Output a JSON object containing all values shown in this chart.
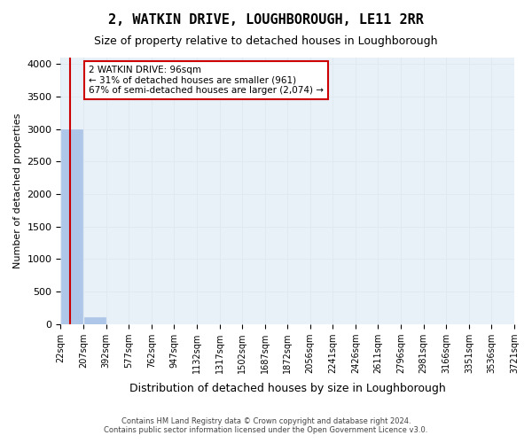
{
  "title": "2, WATKIN DRIVE, LOUGHBOROUGH, LE11 2RR",
  "subtitle": "Size of property relative to detached houses in Loughborough",
  "xlabel": "Distribution of detached houses by size in Loughborough",
  "ylabel": "Number of detached properties",
  "footer_line1": "Contains HM Land Registry data © Crown copyright and database right 2024.",
  "footer_line2": "Contains public sector information licensed under the Open Government Licence v3.0.",
  "bin_edges": [
    22,
    207,
    392,
    577,
    762,
    947,
    1132,
    1317,
    1502,
    1687,
    1872,
    2056,
    2241,
    2426,
    2611,
    2796,
    2981,
    3166,
    3351,
    3536,
    3721
  ],
  "bar_heights": [
    3000,
    110,
    0,
    0,
    0,
    0,
    0,
    0,
    0,
    0,
    0,
    0,
    0,
    0,
    0,
    0,
    0,
    0,
    0,
    0
  ],
  "bar_color": "#aec6e8",
  "bar_edgecolor": "#aec6e8",
  "property_size": 96,
  "vline_color": "#cc0000",
  "annotation_text": "2 WATKIN DRIVE: 96sqm\n← 31% of detached houses are smaller (961)\n67% of semi-detached houses are larger (2,074) →",
  "annotation_box_color": "#ffffff",
  "annotation_box_edgecolor": "#cc0000",
  "ylim": [
    0,
    4100
  ],
  "yticks": [
    0,
    500,
    1000,
    1500,
    2000,
    2500,
    3000,
    3500,
    4000
  ],
  "grid_color": "#e0e8f0",
  "background_color": "#e8f0f8",
  "axes_background": "#e8f0f8",
  "tick_label_fontsize": 7,
  "title_fontsize": 11,
  "subtitle_fontsize": 9,
  "xlabel_fontsize": 9,
  "ylabel_fontsize": 8
}
